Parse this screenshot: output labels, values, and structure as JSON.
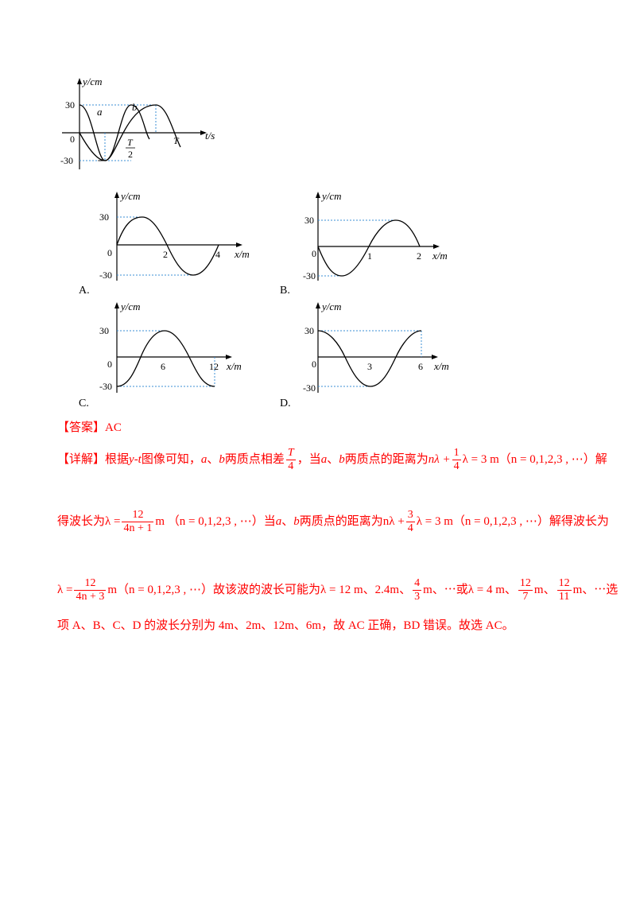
{
  "graphs": {
    "main": {
      "y_axis": "y/cm",
      "x_axis": "t/s",
      "y_top": "30",
      "y_bottom": "-30",
      "origin": "0",
      "curve_a": "a",
      "curve_b": "b",
      "tick_half_num": "T",
      "tick_half_den": "2",
      "tick_T": "T"
    },
    "A": {
      "label": "A.",
      "y_axis": "y/cm",
      "x_axis": "x/m",
      "y_top": "30",
      "y_bottom": "-30",
      "origin": "0",
      "ticks": [
        "2",
        "4"
      ]
    },
    "B": {
      "label": "B.",
      "y_axis": "y/cm",
      "x_axis": "x/m",
      "y_top": "30",
      "y_bottom": "-30",
      "origin": "0",
      "ticks": [
        "1",
        "2"
      ]
    },
    "C": {
      "label": "C.",
      "y_axis": "y/cm",
      "x_axis": "x/m",
      "y_top": "30",
      "y_bottom": "-30",
      "origin": "0",
      "ticks": [
        "6",
        "12"
      ]
    },
    "D": {
      "label": "D.",
      "y_axis": "y/cm",
      "x_axis": "x/m",
      "y_top": "30",
      "y_bottom": "-30",
      "origin": "0",
      "ticks": [
        "3",
        "6"
      ]
    }
  },
  "answer": {
    "bracket": "【答案】",
    "value": "AC"
  },
  "explanation": {
    "bracket": "【详解】",
    "l1_a": "根据",
    "l1_yt": "y-t",
    "l1_b": "图像可知，",
    "l1_a_var": "a",
    "l1_c": "、",
    "l1_b_var": "b",
    "l1_d": "两质点相差",
    "l1_frac_T_num": "T",
    "l1_frac_T_den": "4",
    "l1_e": "，当",
    "l1_f": "a",
    "l1_g": "、",
    "l1_h": "b",
    "l1_i": "两质点的距离为",
    "l1_j": "nλ +",
    "l1_frac_num": "1",
    "l1_frac_den": "4",
    "l1_k": "λ = 3 m（n = 0,1,2,3 , ⋯）解",
    "l2_a": "得波长为λ =",
    "l2_frac_num": "12",
    "l2_frac_den": "4n + 1",
    "l2_b": "m （n = 0,1,2,3 , ⋯）当",
    "l2_c": "a",
    "l2_d": "、",
    "l2_e": "b",
    "l2_f": "两质点的距离为nλ +",
    "l2_frac2_num": "3",
    "l2_frac2_den": "4",
    "l2_g": "λ = 3 m（n = 0,1,2,3 , ⋯）解得波长为",
    "l3_a": "λ =",
    "l3_frac_num": "12",
    "l3_frac_den": "4n + 3",
    "l3_b": "m（n = 0,1,2,3 , ⋯）故该波的波长可能为λ = 12 m、2.4m、",
    "l3_frac2_num": "4",
    "l3_frac2_den": "3",
    "l3_c": "m、⋯或λ = 4 m、",
    "l3_frac3_num": "12",
    "l3_frac3_den": "7",
    "l3_d": "m、",
    "l3_frac4_num": "12",
    "l3_frac4_den": "11",
    "l3_e": "m、⋯选",
    "l4": "项 A、B、C、D 的波长分别为 4m、2m、12m、6m，故 AC 正确，BD 错误。故选 AC。"
  },
  "colors": {
    "answer_red": "#ff0000",
    "dashed_blue": "#3b8fd6",
    "curve": "#000000"
  }
}
